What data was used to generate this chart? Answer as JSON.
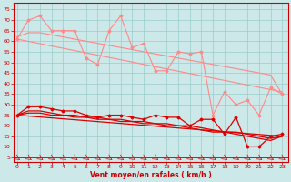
{
  "xlabel": "Vent moyen/en rafales ( km/h )",
  "bg_color": "#cce8e8",
  "grid_color": "#99cccc",
  "x_ticks": [
    0,
    1,
    2,
    3,
    4,
    5,
    6,
    7,
    8,
    9,
    10,
    11,
    12,
    13,
    14,
    15,
    16,
    17,
    18,
    19,
    20,
    21,
    22,
    23
  ],
  "y_ticks": [
    5,
    10,
    15,
    20,
    25,
    30,
    35,
    40,
    45,
    50,
    55,
    60,
    65,
    70,
    75
  ],
  "ylim": [
    3,
    78
  ],
  "xlim": [
    -0.3,
    23.5
  ],
  "pink_jagged": {
    "color": "#ff8888",
    "lw": 0.8,
    "marker": "D",
    "ms": 1.5,
    "x": [
      0,
      1,
      2,
      3,
      4,
      5,
      6,
      7,
      8,
      9,
      10,
      11,
      12,
      13,
      14,
      15,
      16,
      17,
      18,
      19,
      20,
      21,
      22,
      23
    ],
    "y": [
      61,
      70,
      72,
      65,
      65,
      65,
      52,
      49,
      65,
      72,
      57,
      59,
      46,
      46,
      55,
      54,
      55,
      25,
      36,
      30,
      32,
      25,
      38,
      35
    ]
  },
  "pink_trend1": {
    "color": "#ff8888",
    "lw": 0.8,
    "x": [
      0,
      1,
      2,
      3,
      4,
      5,
      6,
      7,
      8,
      9,
      10,
      11,
      12,
      13,
      14,
      15,
      16,
      17,
      18,
      19,
      20,
      21,
      22,
      23
    ],
    "y": [
      62,
      64,
      64,
      63,
      62,
      61,
      60,
      59,
      58,
      57,
      56,
      55,
      54,
      53,
      52,
      51,
      50,
      49,
      48,
      47,
      46,
      45,
      44,
      35
    ]
  },
  "pink_trend2": {
    "color": "#ff8888",
    "lw": 0.8,
    "x": [
      0,
      23
    ],
    "y": [
      61,
      36
    ]
  },
  "red_jagged": {
    "color": "#dd0000",
    "lw": 0.9,
    "marker": "D",
    "ms": 1.5,
    "x": [
      0,
      1,
      2,
      3,
      4,
      5,
      6,
      7,
      8,
      9,
      10,
      11,
      12,
      13,
      14,
      15,
      16,
      17,
      18,
      19,
      20,
      21,
      22,
      23
    ],
    "y": [
      25,
      29,
      29,
      28,
      27,
      27,
      25,
      24,
      25,
      25,
      24,
      23,
      25,
      24,
      24,
      20,
      23,
      23,
      16,
      24,
      10,
      10,
      15,
      16
    ]
  },
  "red_trend1": {
    "color": "#dd0000",
    "lw": 0.9,
    "x": [
      0,
      1,
      2,
      3,
      4,
      5,
      6,
      7,
      8,
      9,
      10,
      11,
      12,
      13,
      14,
      15,
      16,
      17,
      18,
      19,
      20,
      21,
      22,
      23
    ],
    "y": [
      25,
      27,
      27,
      26,
      25,
      25,
      24,
      24,
      23,
      23,
      22,
      22,
      21,
      21,
      20,
      20,
      19,
      18,
      17,
      17,
      16,
      15,
      14,
      15
    ]
  },
  "red_trend2": {
    "color": "#dd0000",
    "lw": 0.9,
    "x": [
      0,
      1,
      2,
      3,
      4,
      5,
      6,
      7,
      8,
      9,
      10,
      11,
      12,
      13,
      14,
      15,
      16,
      17,
      18,
      19,
      20,
      21,
      22,
      23
    ],
    "y": [
      25,
      26,
      26,
      25,
      25,
      24,
      24,
      23,
      23,
      22,
      22,
      21,
      21,
      20,
      20,
      19,
      18,
      17,
      17,
      16,
      15,
      14,
      13,
      15
    ]
  },
  "red_trend3": {
    "color": "#dd0000",
    "lw": 0.9,
    "x": [
      0,
      23
    ],
    "y": [
      25,
      15
    ]
  },
  "tick_color": "#cc0000",
  "label_color": "#cc0000",
  "axis_line_color": "#cc0000",
  "arrow_color": "#cc0000"
}
